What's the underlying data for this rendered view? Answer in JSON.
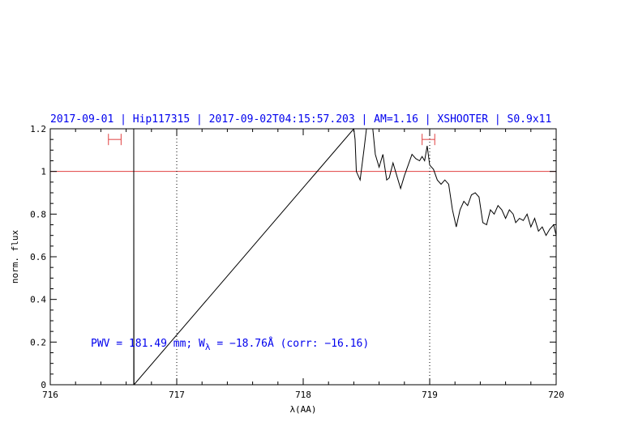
{
  "chart_data": {
    "type": "line",
    "title": "2017-09-01 | Hip117315 | 2017-09-02T04:15:57.203 | AM=1.16 | XSHOOTER | S0.9x11",
    "xlabel": "λ(AA)",
    "ylabel": "norm. flux",
    "xlim": [
      716,
      720
    ],
    "ylim": [
      0,
      1.2
    ],
    "x_ticks": [
      716,
      717,
      718,
      719,
      720
    ],
    "x_tick_labels": [
      "716",
      "717",
      "718",
      "719",
      "720"
    ],
    "y_ticks": [
      0,
      0.2,
      0.4,
      0.6,
      0.8,
      1,
      1.2
    ],
    "y_tick_labels": [
      "0",
      "0.2",
      "0.4",
      "0.6",
      "0.8",
      "1",
      "1.2"
    ],
    "reference_line_y": 1.0,
    "dotted_vlines_x": [
      717.0,
      719.0
    ],
    "error_bars": [
      {
        "x_min": 716.46,
        "x_max": 716.56,
        "y": 1.15
      },
      {
        "x_min": 718.94,
        "x_max": 719.04,
        "y": 1.15
      }
    ],
    "annotation": {
      "prefix": "PWV  =  181.49  mm;  W",
      "subscript": "λ",
      "suffix": "  =  −18.76Å  (corr:  −16.16)"
    },
    "series": [
      {
        "color": "#000000",
        "points": [
          [
            716.66,
            0.0
          ],
          [
            716.66,
            1.2
          ],
          [
            716.661,
            0.45
          ],
          [
            716.662,
            0.0
          ],
          [
            718.4,
            1.2
          ],
          [
            718.41,
            1.15
          ],
          [
            718.42,
            1.0
          ],
          [
            718.45,
            0.96
          ],
          [
            718.48,
            1.1
          ],
          [
            718.5,
            1.2
          ],
          [
            718.55,
            1.2
          ],
          [
            718.57,
            1.08
          ],
          [
            718.6,
            1.02
          ],
          [
            718.63,
            1.08
          ],
          [
            718.66,
            0.96
          ],
          [
            718.68,
            0.97
          ],
          [
            718.71,
            1.04
          ],
          [
            718.74,
            0.98
          ],
          [
            718.77,
            0.92
          ],
          [
            718.8,
            0.98
          ],
          [
            718.83,
            1.03
          ],
          [
            718.86,
            1.08
          ],
          [
            718.89,
            1.06
          ],
          [
            718.92,
            1.05
          ],
          [
            718.94,
            1.07
          ],
          [
            718.96,
            1.05
          ],
          [
            718.98,
            1.12
          ],
          [
            719.0,
            1.03
          ],
          [
            719.03,
            1.01
          ],
          [
            719.06,
            0.96
          ],
          [
            719.09,
            0.94
          ],
          [
            719.12,
            0.96
          ],
          [
            719.15,
            0.94
          ],
          [
            719.18,
            0.82
          ],
          [
            719.21,
            0.74
          ],
          [
            719.24,
            0.82
          ],
          [
            719.27,
            0.86
          ],
          [
            719.3,
            0.84
          ],
          [
            719.33,
            0.89
          ],
          [
            719.36,
            0.9
          ],
          [
            719.39,
            0.88
          ],
          [
            719.42,
            0.76
          ],
          [
            719.45,
            0.75
          ],
          [
            719.48,
            0.82
          ],
          [
            719.51,
            0.8
          ],
          [
            719.54,
            0.84
          ],
          [
            719.57,
            0.82
          ],
          [
            719.6,
            0.78
          ],
          [
            719.63,
            0.82
          ],
          [
            719.66,
            0.8
          ],
          [
            719.68,
            0.76
          ],
          [
            719.71,
            0.78
          ],
          [
            719.74,
            0.77
          ],
          [
            719.77,
            0.8
          ],
          [
            719.8,
            0.74
          ],
          [
            719.83,
            0.78
          ],
          [
            719.86,
            0.72
          ],
          [
            719.89,
            0.74
          ],
          [
            719.92,
            0.7
          ],
          [
            719.95,
            0.73
          ],
          [
            719.98,
            0.75
          ],
          [
            720.0,
            0.7
          ]
        ]
      }
    ]
  }
}
